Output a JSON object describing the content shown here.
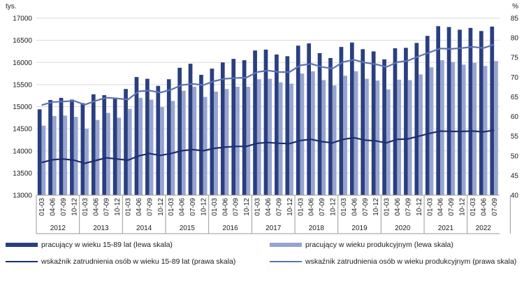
{
  "chart_data": {
    "type": "bar",
    "left_axis_label": "tys.",
    "right_axis_label": "%",
    "left_ylim": [
      13000,
      17000
    ],
    "right_ylim": [
      40,
      85
    ],
    "left_ticks": [
      13000,
      13500,
      14000,
      14500,
      15000,
      15500,
      16000,
      16500,
      17000
    ],
    "right_ticks": [
      40,
      45,
      50,
      55,
      60,
      65,
      70,
      75,
      80,
      85
    ],
    "quarters": [
      "01-03",
      "04-06",
      "07-09",
      "10-12"
    ],
    "years": [
      "2012",
      "2013",
      "2014",
      "2015",
      "2016",
      "2017",
      "2018",
      "2019",
      "2020",
      "2021",
      "2022"
    ],
    "colors": {
      "bar_15_89": "#2a3f80",
      "bar_productive": "#97a4d0",
      "line_15_89": "#1c2e6e",
      "line_productive": "#5e72b4",
      "grid": "#d9d9d9"
    },
    "series": [
      {
        "name": "pracujący w wieku 15-89 lat (lewa skala)",
        "kind": "bar",
        "axis": "left",
        "values": [
          14940,
          15150,
          15200,
          15160,
          15080,
          15280,
          15260,
          15180,
          15400,
          15670,
          15630,
          15470,
          15620,
          15880,
          15970,
          15720,
          15860,
          16000,
          16080,
          16050,
          16270,
          16290,
          16180,
          16140,
          16380,
          16430,
          16210,
          16100,
          16350,
          16450,
          16300,
          16250,
          16070,
          16320,
          16330,
          16440,
          16600,
          16820,
          16800,
          16740,
          16780,
          16710,
          16810
        ]
      },
      {
        "name": "pracujący w wieku produkcyjnym (lewa skala)",
        "kind": "bar",
        "axis": "left",
        "values": [
          14570,
          14790,
          14800,
          14770,
          14500,
          14700,
          14860,
          14750,
          14950,
          15200,
          15160,
          14990,
          15130,
          15360,
          15450,
          15220,
          15340,
          15400,
          15450,
          15450,
          15620,
          15630,
          15550,
          15520,
          15750,
          15800,
          15600,
          15480,
          15700,
          15800,
          15630,
          15590,
          15390,
          15610,
          15600,
          15730,
          15890,
          16050,
          16010,
          15950,
          15990,
          15920,
          16030
        ]
      },
      {
        "name": "wskaźnik zatrudnienia osób w wieku 15-89 lat (prawa skala)",
        "kind": "line",
        "axis": "right",
        "values": [
          48.3,
          49.0,
          49.2,
          48.9,
          48.1,
          48.8,
          49.5,
          49.2,
          48.9,
          50.0,
          50.6,
          50.1,
          50.6,
          51.3,
          51.6,
          51.3,
          51.9,
          52.2,
          52.4,
          52.4,
          53.2,
          53.4,
          53.2,
          53.1,
          53.9,
          54.2,
          53.6,
          53.3,
          54.2,
          54.6,
          54.0,
          53.8,
          53.3,
          54.2,
          54.3,
          55.0,
          55.7,
          56.3,
          56.2,
          56.2,
          56.3,
          56.1,
          56.5
        ]
      },
      {
        "name": "wskaźnik zatrudnienia osób w wieku produkcyjnym (prawa skala)",
        "kind": "line",
        "axis": "right",
        "values": [
          62.9,
          63.7,
          63.8,
          64.0,
          63.0,
          64.0,
          64.8,
          64.6,
          64.3,
          66.4,
          66.6,
          66.1,
          66.8,
          68.0,
          68.3,
          68.0,
          69.0,
          69.6,
          69.8,
          69.9,
          71.3,
          71.7,
          71.3,
          71.3,
          73.0,
          73.4,
          72.6,
          72.2,
          73.9,
          74.4,
          73.7,
          73.3,
          72.6,
          73.8,
          74.2,
          75.3,
          76.3,
          77.3,
          77.2,
          77.4,
          77.7,
          77.4,
          78.3
        ]
      }
    ]
  }
}
